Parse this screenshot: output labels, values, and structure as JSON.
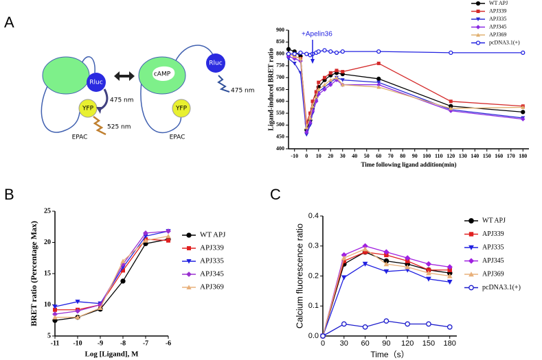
{
  "panels": [
    "A",
    "B",
    "C"
  ],
  "diagram": {
    "left": {
      "donor": "Rluc",
      "acceptor": "YFP",
      "donor_emission": "475 nm",
      "acceptor_emission": "525 nm",
      "label": "EPAC"
    },
    "right": {
      "ligand": "cAMP",
      "donor": "Rluc",
      "donor_emission": "475 nm",
      "acceptor": "YFP",
      "label": "EPAC"
    }
  },
  "chart_data": [
    {
      "type": "line",
      "x_label": "Time following ligand addition(min)",
      "y_label": "Ligand-induced BRET ratio",
      "annotation": "+Apelin36",
      "x": [
        -15,
        -10,
        -5,
        0,
        3,
        5,
        8,
        10,
        15,
        20,
        25,
        30,
        60,
        120,
        180
      ],
      "xlim": [
        -15,
        185
      ],
      "ylim": [
        400,
        900
      ],
      "xticks": [
        -10,
        0,
        10,
        20,
        30,
        40,
        50,
        60,
        70,
        80,
        90,
        100,
        110,
        120,
        130,
        140,
        150,
        160,
        170,
        180
      ],
      "yticks": [
        400,
        450,
        500,
        550,
        600,
        650,
        700,
        750,
        800,
        850,
        900
      ],
      "series": [
        {
          "name": "WT APJ",
          "color": "#000000",
          "marker": "circle",
          "values": [
            820,
            810,
            790,
            480,
            520,
            570,
            620,
            660,
            690,
            710,
            720,
            715,
            695,
            580,
            555
          ]
        },
        {
          "name": "APJ339",
          "color": "#d42a2a",
          "marker": "square",
          "values": [
            800,
            790,
            780,
            510,
            550,
            600,
            640,
            680,
            700,
            720,
            730,
            725,
            760,
            600,
            580
          ]
        },
        {
          "name": "APJ335",
          "color": "#2a2ad4",
          "marker": "triangle-down",
          "values": [
            780,
            760,
            720,
            460,
            500,
            550,
            600,
            640,
            660,
            680,
            700,
            690,
            680,
            565,
            530
          ]
        },
        {
          "name": "APJ345",
          "color": "#8a2be2",
          "marker": "diamond",
          "values": [
            790,
            780,
            770,
            470,
            510,
            560,
            600,
            630,
            650,
            670,
            690,
            670,
            670,
            560,
            525
          ]
        },
        {
          "name": "APJ369",
          "color": "#e0b070",
          "marker": "triangle-up",
          "values": [
            800,
            790,
            780,
            490,
            530,
            580,
            620,
            650,
            670,
            690,
            700,
            670,
            660,
            570,
            575
          ]
        },
        {
          "name": "pcDNA3.1(+)",
          "color": "#2020e0",
          "marker": "open-circle",
          "values": [
            800,
            800,
            805,
            800,
            795,
            800,
            805,
            810,
            815,
            810,
            805,
            810,
            810,
            805,
            805
          ]
        }
      ]
    },
    {
      "type": "line",
      "x_label": "Log [Ligand], M",
      "y_label": "BRET ratio (Percentage Max)",
      "x": [
        -11,
        -10,
        -9,
        -8,
        -7,
        -6
      ],
      "xlim": [
        -11,
        -6
      ],
      "ylim": [
        5,
        25
      ],
      "xticks": [
        -11,
        -10,
        -9,
        -8,
        -7,
        -6
      ],
      "yticks": [
        5,
        10,
        15,
        20,
        25
      ],
      "series": [
        {
          "name": "WT APJ",
          "color": "#000000",
          "marker": "circle",
          "values": [
            7.5,
            8,
            9.3,
            13.8,
            19.8,
            20.5
          ]
        },
        {
          "name": "APJ339",
          "color": "#e02020",
          "marker": "square",
          "values": [
            9.2,
            9.2,
            10,
            15.5,
            20.5,
            20.3
          ]
        },
        {
          "name": "APJ335",
          "color": "#2020e0",
          "marker": "triangle-down",
          "values": [
            9.7,
            10.5,
            10.2,
            16,
            21,
            21.8
          ]
        },
        {
          "name": "APJ345",
          "color": "#9a30d0",
          "marker": "diamond",
          "values": [
            8.5,
            9,
            10,
            16.5,
            21.5,
            21.8
          ]
        },
        {
          "name": "APJ369",
          "color": "#e8b07a",
          "marker": "triangle-up",
          "values": [
            8,
            8,
            9.5,
            17,
            20.3,
            21
          ]
        }
      ]
    },
    {
      "type": "line",
      "x_label": "Time（s）",
      "y_label": "Calcium fluorescence ratio",
      "x": [
        0,
        30,
        60,
        90,
        120,
        150,
        180
      ],
      "xlim": [
        0,
        190
      ],
      "ylim": [
        0,
        0.4
      ],
      "xticks": [
        0,
        30,
        60,
        90,
        120,
        150,
        180
      ],
      "yticks": [
        {
          "value": 0,
          "label": "0.0"
        },
        0.1,
        0.2,
        0.3,
        0.4
      ],
      "series": [
        {
          "name": "WT APJ",
          "color": "#000000",
          "marker": "circle",
          "values": [
            0,
            0.24,
            0.28,
            0.25,
            0.24,
            0.22,
            0.21
          ]
        },
        {
          "name": "APJ339",
          "color": "#e02020",
          "marker": "square",
          "values": [
            0,
            0.25,
            0.28,
            0.27,
            0.25,
            0.22,
            0.22
          ]
        },
        {
          "name": "APJ335",
          "color": "#2020e0",
          "marker": "triangle-down",
          "values": [
            0,
            0.195,
            0.24,
            0.215,
            0.22,
            0.19,
            0.18
          ]
        },
        {
          "name": "APJ345",
          "color": "#a020e0",
          "marker": "diamond",
          "values": [
            0,
            0.27,
            0.3,
            0.28,
            0.26,
            0.24,
            0.23
          ]
        },
        {
          "name": "APJ369",
          "color": "#e8b07a",
          "marker": "triangle-up",
          "values": [
            0,
            0.26,
            0.29,
            0.24,
            0.23,
            0.21,
            0.2
          ]
        },
        {
          "name": "pcDNA3.1(+)",
          "color": "#1a1acc",
          "marker": "open-circle",
          "values": [
            0,
            0.04,
            0.03,
            0.05,
            0.04,
            0.04,
            0.03
          ]
        }
      ]
    }
  ]
}
